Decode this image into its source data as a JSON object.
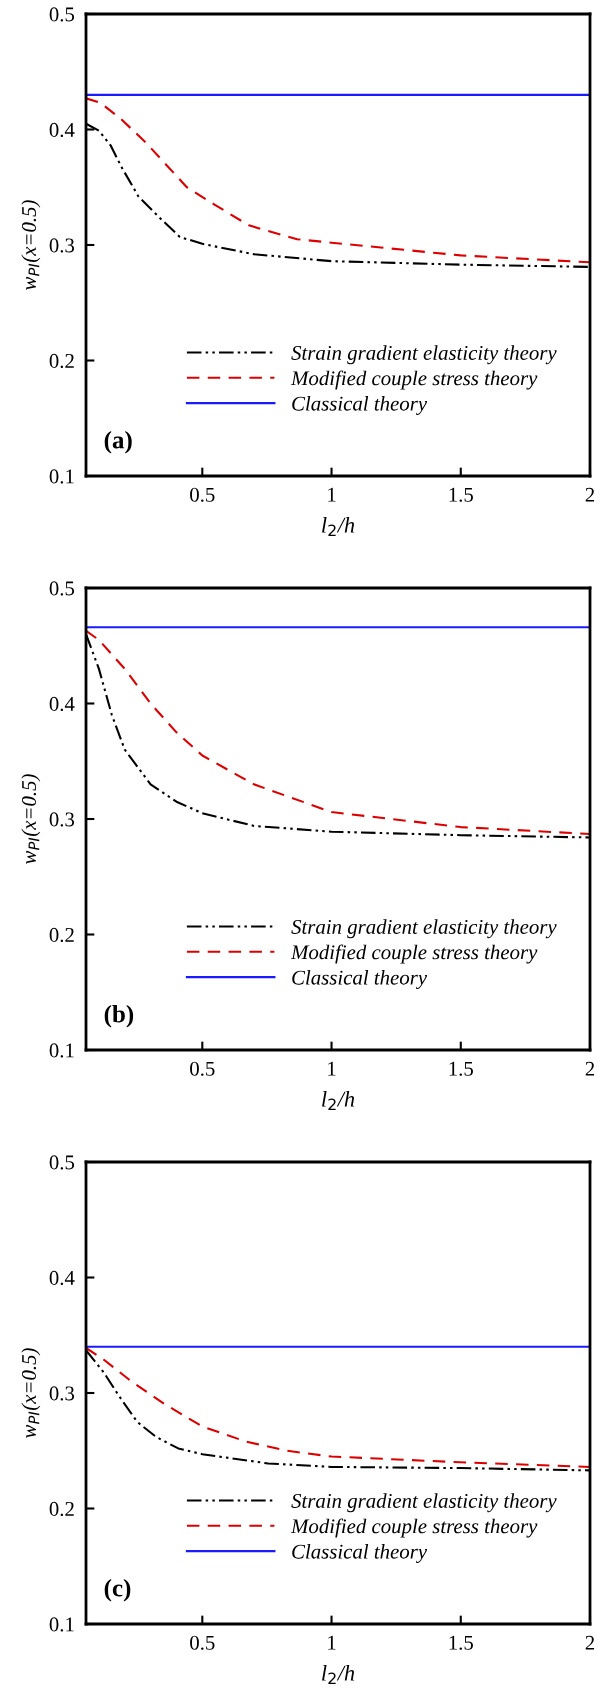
{
  "chart_data": [
    {
      "type": "line",
      "xlabel": "l$_{2}$/h",
      "ylabel": "w$_{PI}$(x=0.5)",
      "xlim": [
        0.05,
        2
      ],
      "ylim": [
        0.1,
        0.5
      ],
      "xticks": [
        0.5,
        1,
        1.5,
        2
      ],
      "yticks": [
        0.1,
        0.2,
        0.3,
        0.4,
        0.5
      ],
      "grid": false,
      "legend": "lower right",
      "marker": "none",
      "annotations": [
        "(a)"
      ],
      "series": [
        {
          "name": "Strain gradient elasticity theory",
          "color": "#000000",
          "line_style": "dashdotdot",
          "x": [
            0.05,
            0.1,
            0.146,
            0.186,
            0.253,
            0.333,
            0.413,
            0.5,
            0.7,
            1.0,
            1.5,
            2.0
          ],
          "values": [
            0.405,
            0.399,
            0.386,
            0.368,
            0.342,
            0.324,
            0.307,
            0.301,
            0.292,
            0.286,
            0.283,
            0.281
          ]
        },
        {
          "name": "Modified couple stress theory",
          "color": "#dd0000",
          "line_style": "dashed",
          "x": [
            0.05,
            0.106,
            0.186,
            0.28,
            0.346,
            0.44,
            0.547,
            0.68,
            0.867,
            1.0,
            1.5,
            2.0
          ],
          "values": [
            0.427,
            0.423,
            0.409,
            0.389,
            0.373,
            0.35,
            0.335,
            0.317,
            0.305,
            0.302,
            0.291,
            0.285
          ]
        },
        {
          "name": "Classical theory",
          "color": "#1a1aff",
          "line_style": "solid",
          "x": [
            0.05,
            2.0
          ],
          "values": [
            0.43,
            0.43
          ]
        }
      ]
    },
    {
      "type": "line",
      "xlabel": "l$_{2}$/h",
      "ylabel": "w$_{PI}$(x=0.5)",
      "xlim": [
        0.05,
        2
      ],
      "ylim": [
        0.1,
        0.5
      ],
      "xticks": [
        0.5,
        1,
        1.5,
        2
      ],
      "yticks": [
        0.1,
        0.2,
        0.3,
        0.4,
        0.5
      ],
      "grid": false,
      "legend": "lower right",
      "marker": "none",
      "annotations": [
        "(b)"
      ],
      "series": [
        {
          "name": "Strain gradient elasticity theory",
          "color": "#000000",
          "line_style": "dashdotdot",
          "x": [
            0.05,
            0.1,
            0.15,
            0.2,
            0.3,
            0.4,
            0.5,
            0.7,
            1.0,
            1.5,
            2.0
          ],
          "values": [
            0.46,
            0.43,
            0.39,
            0.36,
            0.33,
            0.315,
            0.305,
            0.294,
            0.289,
            0.286,
            0.284
          ]
        },
        {
          "name": "Modified couple stress theory",
          "color": "#dd0000",
          "line_style": "dashed",
          "x": [
            0.05,
            0.1,
            0.2,
            0.3,
            0.4,
            0.5,
            0.7,
            1.0,
            1.5,
            2.0
          ],
          "values": [
            0.463,
            0.455,
            0.43,
            0.4,
            0.375,
            0.355,
            0.33,
            0.306,
            0.293,
            0.287
          ]
        },
        {
          "name": "Classical theory",
          "color": "#1a1aff",
          "line_style": "solid",
          "x": [
            0.05,
            2.0
          ],
          "values": [
            0.466,
            0.466
          ]
        }
      ]
    },
    {
      "type": "line",
      "xlabel": "l$_{2}$/h",
      "ylabel": "w$_{PI}$(x=0.5)",
      "xlim": [
        0.05,
        2
      ],
      "ylim": [
        0.1,
        0.5
      ],
      "xticks": [
        0.5,
        1,
        1.5,
        2
      ],
      "yticks": [
        0.1,
        0.2,
        0.3,
        0.4,
        0.5
      ],
      "grid": false,
      "legend": "lower right",
      "marker": "none",
      "annotations": [
        "(c)"
      ],
      "series": [
        {
          "name": "Strain gradient elasticity theory",
          "color": "#000000",
          "line_style": "dashdotdot",
          "x": [
            0.05,
            0.118,
            0.176,
            0.248,
            0.321,
            0.407,
            0.5,
            0.755,
            1.0,
            1.5,
            2.0
          ],
          "values": [
            0.337,
            0.318,
            0.298,
            0.275,
            0.262,
            0.252,
            0.247,
            0.239,
            0.236,
            0.235,
            0.233
          ]
        },
        {
          "name": "Modified couple stress theory",
          "color": "#dd0000",
          "line_style": "dashed",
          "x": [
            0.05,
            0.118,
            0.22,
            0.35,
            0.5,
            0.668,
            0.827,
            1.0,
            1.5,
            2.0
          ],
          "values": [
            0.339,
            0.329,
            0.311,
            0.291,
            0.271,
            0.258,
            0.25,
            0.245,
            0.24,
            0.236
          ]
        },
        {
          "name": "Classical theory",
          "color": "#1a1aff",
          "line_style": "solid",
          "x": [
            0.05,
            2.0
          ],
          "values": [
            0.34,
            0.34
          ]
        }
      ]
    }
  ]
}
